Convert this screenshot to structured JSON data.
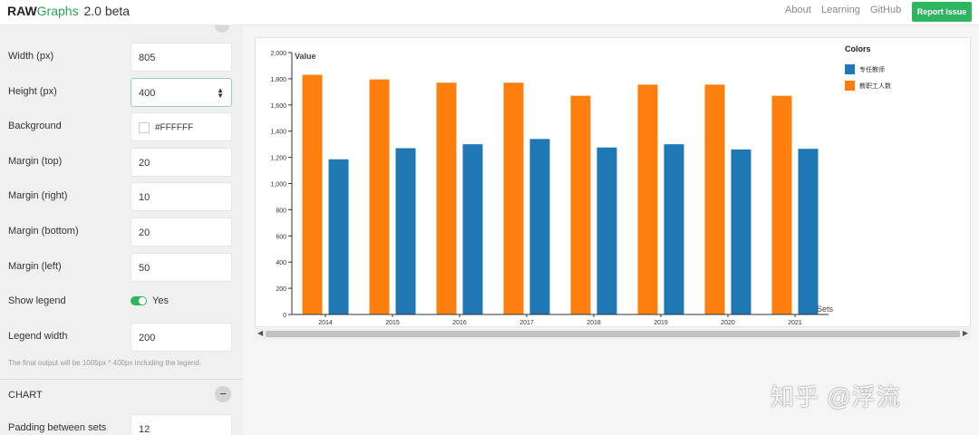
{
  "header": {
    "brand_raw": "RAW",
    "brand_graphs": "Graphs",
    "brand_version": "2.0 beta",
    "nav": [
      "About",
      "Learning",
      "GitHub"
    ],
    "report_label": "Report issue"
  },
  "sidebar": {
    "fields": [
      {
        "label": "Width (px)",
        "value": "805"
      },
      {
        "label": "Height (px)",
        "value": "400"
      },
      {
        "label": "Background",
        "value": "#FFFFFF"
      },
      {
        "label": "Margin (top)",
        "value": "20"
      },
      {
        "label": "Margin (right)",
        "value": "10"
      },
      {
        "label": "Margin (bottom)",
        "value": "20"
      },
      {
        "label": "Margin (left)",
        "value": "50"
      }
    ],
    "legend": {
      "label": "Show legend",
      "value": "Yes"
    },
    "legend_width": {
      "label": "Legend width",
      "value": "200"
    },
    "note": "The final output will be 1005px * 400px including the legend.",
    "section_title": "CHART",
    "collapse_symbol": "−",
    "padding": {
      "label": "Padding between sets",
      "value": "12"
    }
  },
  "chart_data": {
    "type": "bar",
    "ylabel": "Value",
    "xlabel": "Sets",
    "ylim": [
      0,
      2000
    ],
    "yticks": [
      0,
      200,
      400,
      600,
      800,
      1000,
      1200,
      1400,
      1600,
      1800,
      2000
    ],
    "ytick_labels": [
      "0",
      "200",
      "400",
      "600",
      "800",
      "1,000",
      "1,200",
      "1,400",
      "1,600",
      "1,800",
      "2,000"
    ],
    "categories": [
      "2014",
      "2015",
      "2016",
      "2017",
      "2018",
      "2019",
      "2020",
      "2021"
    ],
    "series": [
      {
        "name": "教职工人数",
        "color": "#ff7f0e",
        "values": [
          1830,
          1795,
          1770,
          1770,
          1670,
          1755,
          1755,
          1670
        ]
      },
      {
        "name": "专任教师",
        "color": "#1f77b4",
        "values": [
          1185,
          1270,
          1300,
          1340,
          1275,
          1300,
          1260,
          1265
        ]
      }
    ],
    "legend_title": "Colors",
    "legend_order": [
      "专任教师",
      "教职工人数"
    ],
    "legend_placement": "right"
  },
  "watermark": "知乎 @浮流"
}
